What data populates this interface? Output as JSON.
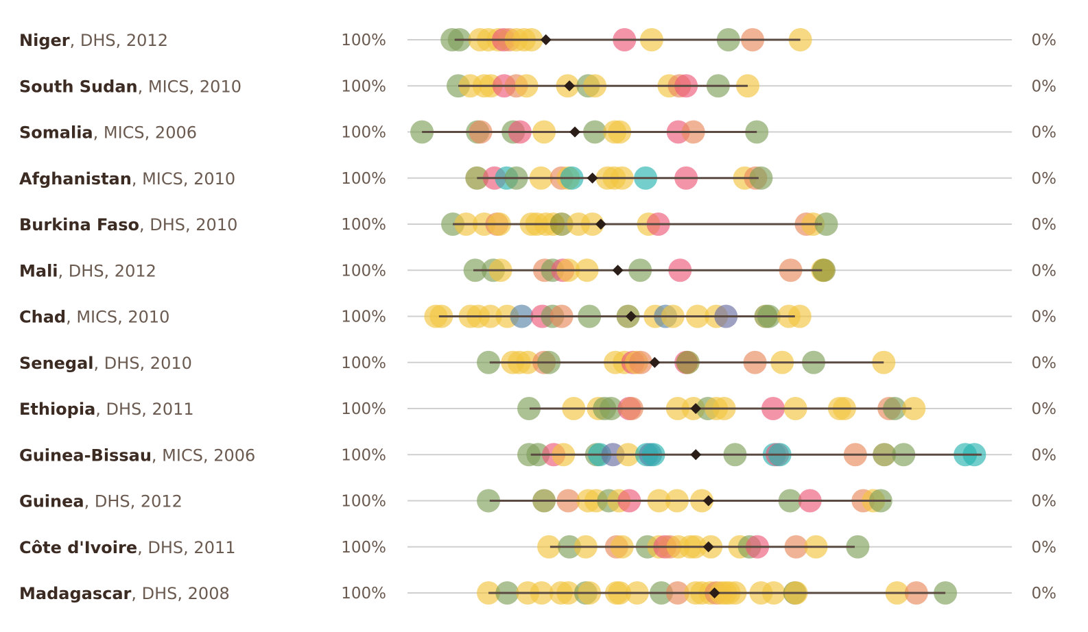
{
  "chart_data": {
    "type": "scatter",
    "xlim": [
      0,
      100
    ],
    "x_axis_direction": "descending",
    "left_label": "100%",
    "right_label": "0%",
    "colors": {
      "green": "#7f9f5b",
      "yellow": "#f2c440",
      "orange": "#e98a5c",
      "pink": "#ec5a7a",
      "teal": "#2ab3b0",
      "blue": "#5b86a8",
      "purple": "#6c6fa3",
      "olive": "#8a8f2c",
      "range": "#5a4a42",
      "median": "#2b1d17"
    },
    "rows": [
      {
        "country": "Niger",
        "meta": ", DHS, 2012",
        "median": 77.1,
        "range": [
          92.2,
          35.0
        ],
        "points": [
          {
            "x": 92.6,
            "c": "green"
          },
          {
            "x": 91.4,
            "c": "green"
          },
          {
            "x": 88.0,
            "c": "yellow"
          },
          {
            "x": 86.6,
            "c": "yellow"
          },
          {
            "x": 85.0,
            "c": "yellow"
          },
          {
            "x": 84.1,
            "c": "pink"
          },
          {
            "x": 83.2,
            "c": "orange"
          },
          {
            "x": 82.0,
            "c": "yellow"
          },
          {
            "x": 80.7,
            "c": "yellow"
          },
          {
            "x": 79.5,
            "c": "yellow"
          },
          {
            "x": 64.1,
            "c": "pink"
          },
          {
            "x": 59.6,
            "c": "yellow"
          },
          {
            "x": 46.9,
            "c": "green"
          },
          {
            "x": 42.9,
            "c": "orange"
          },
          {
            "x": 35.0,
            "c": "yellow"
          }
        ]
      },
      {
        "country": "South Sudan",
        "meta": ", MICS, 2010",
        "median": 73.2,
        "range": [
          91.6,
          43.7
        ],
        "points": [
          {
            "x": 91.6,
            "c": "green"
          },
          {
            "x": 89.6,
            "c": "yellow"
          },
          {
            "x": 87.3,
            "c": "yellow"
          },
          {
            "x": 86.2,
            "c": "yellow"
          },
          {
            "x": 84.0,
            "c": "pink"
          },
          {
            "x": 82.0,
            "c": "orange"
          },
          {
            "x": 80.3,
            "c": "yellow"
          },
          {
            "x": 73.5,
            "c": "yellow"
          },
          {
            "x": 70.1,
            "c": "green"
          },
          {
            "x": 69.0,
            "c": "yellow"
          },
          {
            "x": 56.7,
            "c": "yellow"
          },
          {
            "x": 55.0,
            "c": "orange"
          },
          {
            "x": 53.9,
            "c": "pink"
          },
          {
            "x": 48.6,
            "c": "green"
          },
          {
            "x": 43.7,
            "c": "yellow"
          }
        ]
      },
      {
        "country": "Somalia",
        "meta": ", MICS, 2006",
        "median": 72.3,
        "range": [
          97.6,
          42.2
        ],
        "points": [
          {
            "x": 97.6,
            "c": "green"
          },
          {
            "x": 88.4,
            "c": "green"
          },
          {
            "x": 87.9,
            "c": "orange"
          },
          {
            "x": 82.5,
            "c": "green"
          },
          {
            "x": 81.4,
            "c": "pink"
          },
          {
            "x": 77.4,
            "c": "yellow"
          },
          {
            "x": 69.0,
            "c": "green"
          },
          {
            "x": 65.7,
            "c": "yellow"
          },
          {
            "x": 64.9,
            "c": "yellow"
          },
          {
            "x": 55.2,
            "c": "pink"
          },
          {
            "x": 52.7,
            "c": "orange"
          },
          {
            "x": 42.2,
            "c": "green"
          }
        ]
      },
      {
        "country": "Afghanistan",
        "meta": ", MICS, 2010",
        "median": 69.4,
        "range": [
          88.5,
          41.9
        ],
        "points": [
          {
            "x": 88.5,
            "c": "olive"
          },
          {
            "x": 85.6,
            "c": "pink"
          },
          {
            "x": 83.6,
            "c": "teal"
          },
          {
            "x": 82.0,
            "c": "green"
          },
          {
            "x": 77.9,
            "c": "yellow"
          },
          {
            "x": 74.5,
            "c": "orange"
          },
          {
            "x": 73.4,
            "c": "yellow"
          },
          {
            "x": 72.8,
            "c": "teal"
          },
          {
            "x": 66.9,
            "c": "yellow"
          },
          {
            "x": 65.8,
            "c": "yellow"
          },
          {
            "x": 64.5,
            "c": "yellow"
          },
          {
            "x": 60.6,
            "c": "teal"
          },
          {
            "x": 53.9,
            "c": "pink"
          },
          {
            "x": 44.2,
            "c": "yellow"
          },
          {
            "x": 42.4,
            "c": "orange"
          },
          {
            "x": 41.5,
            "c": "green"
          }
        ]
      },
      {
        "country": "Burkina Faso",
        "meta": ", DHS, 2010",
        "median": 68.0,
        "range": [
          92.5,
          31.4
        ],
        "points": [
          {
            "x": 92.5,
            "c": "green"
          },
          {
            "x": 90.3,
            "c": "yellow"
          },
          {
            "x": 87.3,
            "c": "yellow"
          },
          {
            "x": 85.2,
            "c": "orange"
          },
          {
            "x": 84.8,
            "c": "yellow"
          },
          {
            "x": 79.5,
            "c": "yellow"
          },
          {
            "x": 78.6,
            "c": "yellow"
          },
          {
            "x": 77.1,
            "c": "yellow"
          },
          {
            "x": 75.9,
            "c": "yellow"
          },
          {
            "x": 74.5,
            "c": "olive"
          },
          {
            "x": 71.7,
            "c": "yellow"
          },
          {
            "x": 69.4,
            "c": "yellow"
          },
          {
            "x": 60.1,
            "c": "yellow"
          },
          {
            "x": 58.5,
            "c": "pink"
          },
          {
            "x": 34.0,
            "c": "orange"
          },
          {
            "x": 32.9,
            "c": "yellow"
          },
          {
            "x": 30.7,
            "c": "green"
          }
        ]
      },
      {
        "country": "Mali",
        "meta": ", DHS, 2012",
        "median": 65.2,
        "range": [
          89.1,
          31.4
        ],
        "points": [
          {
            "x": 88.8,
            "c": "green"
          },
          {
            "x": 85.8,
            "c": "green"
          },
          {
            "x": 84.6,
            "c": "yellow"
          },
          {
            "x": 77.3,
            "c": "orange"
          },
          {
            "x": 76.0,
            "c": "green"
          },
          {
            "x": 74.3,
            "c": "pink"
          },
          {
            "x": 73.4,
            "c": "yellow"
          },
          {
            "x": 70.3,
            "c": "yellow"
          },
          {
            "x": 61.5,
            "c": "green"
          },
          {
            "x": 54.9,
            "c": "pink"
          },
          {
            "x": 36.6,
            "c": "orange"
          },
          {
            "x": 31.3,
            "c": "yellow"
          },
          {
            "x": 31.1,
            "c": "olive"
          }
        ]
      },
      {
        "country": "Chad",
        "meta": ", MICS, 2010",
        "median": 63.0,
        "range": [
          94.8,
          35.9
        ],
        "points": [
          {
            "x": 95.3,
            "c": "yellow"
          },
          {
            "x": 94.4,
            "c": "yellow"
          },
          {
            "x": 89.6,
            "c": "yellow"
          },
          {
            "x": 88.3,
            "c": "yellow"
          },
          {
            "x": 86.3,
            "c": "yellow"
          },
          {
            "x": 83.5,
            "c": "yellow"
          },
          {
            "x": 81.1,
            "c": "blue"
          },
          {
            "x": 77.7,
            "c": "pink"
          },
          {
            "x": 76.0,
            "c": "green"
          },
          {
            "x": 74.5,
            "c": "orange"
          },
          {
            "x": 69.9,
            "c": "green"
          },
          {
            "x": 63.5,
            "c": "olive"
          },
          {
            "x": 59.0,
            "c": "yellow"
          },
          {
            "x": 57.3,
            "c": "blue"
          },
          {
            "x": 56.1,
            "c": "yellow"
          },
          {
            "x": 52.0,
            "c": "yellow"
          },
          {
            "x": 48.9,
            "c": "yellow"
          },
          {
            "x": 47.3,
            "c": "purple"
          },
          {
            "x": 40.7,
            "c": "olive"
          },
          {
            "x": 40.2,
            "c": "green"
          },
          {
            "x": 36.9,
            "c": "yellow"
          },
          {
            "x": 35.1,
            "c": "yellow"
          }
        ]
      },
      {
        "country": "Senegal",
        "meta": ", DHS, 2010",
        "median": 59.1,
        "range": [
          86.4,
          21.2
        ],
        "points": [
          {
            "x": 86.6,
            "c": "green"
          },
          {
            "x": 82.6,
            "c": "yellow"
          },
          {
            "x": 81.5,
            "c": "yellow"
          },
          {
            "x": 80.1,
            "c": "yellow"
          },
          {
            "x": 77.4,
            "c": "orange"
          },
          {
            "x": 76.6,
            "c": "green"
          },
          {
            "x": 65.6,
            "c": "yellow"
          },
          {
            "x": 64.1,
            "c": "yellow"
          },
          {
            "x": 62.7,
            "c": "pink"
          },
          {
            "x": 62.1,
            "c": "yellow"
          },
          {
            "x": 61.4,
            "c": "orange"
          },
          {
            "x": 53.9,
            "c": "pink"
          },
          {
            "x": 53.6,
            "c": "olive"
          },
          {
            "x": 42.5,
            "c": "orange"
          },
          {
            "x": 38.0,
            "c": "yellow"
          },
          {
            "x": 32.8,
            "c": "green"
          },
          {
            "x": 21.2,
            "c": "yellow"
          }
        ]
      },
      {
        "country": "Ethiopia",
        "meta": ", DHS, 2011",
        "median": 52.3,
        "range": [
          79.8,
          16.6
        ],
        "points": [
          {
            "x": 79.9,
            "c": "green"
          },
          {
            "x": 72.5,
            "c": "yellow"
          },
          {
            "x": 68.4,
            "c": "yellow"
          },
          {
            "x": 67.4,
            "c": "green"
          },
          {
            "x": 66.3,
            "c": "green"
          },
          {
            "x": 63.3,
            "c": "pink"
          },
          {
            "x": 62.9,
            "c": "orange"
          },
          {
            "x": 55.3,
            "c": "yellow"
          },
          {
            "x": 52.7,
            "c": "yellow"
          },
          {
            "x": 50.3,
            "c": "green"
          },
          {
            "x": 48.9,
            "c": "yellow"
          },
          {
            "x": 47.6,
            "c": "yellow"
          },
          {
            "x": 39.5,
            "c": "pink"
          },
          {
            "x": 35.8,
            "c": "yellow"
          },
          {
            "x": 28.5,
            "c": "yellow"
          },
          {
            "x": 27.7,
            "c": "yellow"
          },
          {
            "x": 20.3,
            "c": "orange"
          },
          {
            "x": 19.4,
            "c": "green"
          },
          {
            "x": 16.2,
            "c": "yellow"
          }
        ]
      },
      {
        "country": "Guinea-Bissau",
        "meta": ", MICS, 2006",
        "median": 52.3,
        "range": [
          79.6,
          5.0
        ],
        "points": [
          {
            "x": 79.9,
            "c": "green"
          },
          {
            "x": 78.4,
            "c": "green"
          },
          {
            "x": 75.8,
            "c": "pink"
          },
          {
            "x": 74.2,
            "c": "yellow"
          },
          {
            "x": 68.7,
            "c": "green"
          },
          {
            "x": 68.2,
            "c": "teal"
          },
          {
            "x": 66.0,
            "c": "purple"
          },
          {
            "x": 63.5,
            "c": "yellow"
          },
          {
            "x": 60.4,
            "c": "teal"
          },
          {
            "x": 59.8,
            "c": "blue"
          },
          {
            "x": 59.3,
            "c": "teal"
          },
          {
            "x": 45.8,
            "c": "green"
          },
          {
            "x": 39.3,
            "c": "teal"
          },
          {
            "x": 38.8,
            "c": "pink"
          },
          {
            "x": 38.4,
            "c": "teal"
          },
          {
            "x": 25.9,
            "c": "orange"
          },
          {
            "x": 21.1,
            "c": "olive"
          },
          {
            "x": 17.9,
            "c": "green"
          },
          {
            "x": 7.7,
            "c": "teal"
          },
          {
            "x": 6.2,
            "c": "teal"
          }
        ]
      },
      {
        "country": "Guinea",
        "meta": ", DHS, 2012",
        "median": 50.2,
        "range": [
          86.4,
          20.0
        ],
        "points": [
          {
            "x": 86.6,
            "c": "green"
          },
          {
            "x": 77.4,
            "c": "olive"
          },
          {
            "x": 73.4,
            "c": "orange"
          },
          {
            "x": 70.1,
            "c": "yellow"
          },
          {
            "x": 68.8,
            "c": "yellow"
          },
          {
            "x": 66.7,
            "c": "green"
          },
          {
            "x": 65.0,
            "c": "yellow"
          },
          {
            "x": 63.3,
            "c": "pink"
          },
          {
            "x": 58.4,
            "c": "yellow"
          },
          {
            "x": 55.4,
            "c": "yellow"
          },
          {
            "x": 51.3,
            "c": "yellow"
          },
          {
            "x": 36.7,
            "c": "green"
          },
          {
            "x": 33.4,
            "c": "pink"
          },
          {
            "x": 24.6,
            "c": "orange"
          },
          {
            "x": 22.9,
            "c": "yellow"
          },
          {
            "x": 21.7,
            "c": "green"
          }
        ]
      },
      {
        "country": "Côte d'Ivoire",
        "meta": ", DHS, 2011",
        "median": 50.2,
        "range": [
          76.4,
          26.0
        ],
        "points": [
          {
            "x": 76.6,
            "c": "yellow"
          },
          {
            "x": 73.2,
            "c": "green"
          },
          {
            "x": 70.5,
            "c": "yellow"
          },
          {
            "x": 65.4,
            "c": "orange"
          },
          {
            "x": 64.5,
            "c": "yellow"
          },
          {
            "x": 60.3,
            "c": "green"
          },
          {
            "x": 58.4,
            "c": "yellow"
          },
          {
            "x": 57.4,
            "c": "pink"
          },
          {
            "x": 56.6,
            "c": "orange"
          },
          {
            "x": 55.2,
            "c": "yellow"
          },
          {
            "x": 53.2,
            "c": "yellow"
          },
          {
            "x": 52.4,
            "c": "yellow"
          },
          {
            "x": 49.8,
            "c": "yellow"
          },
          {
            "x": 45.0,
            "c": "yellow"
          },
          {
            "x": 43.4,
            "c": "green"
          },
          {
            "x": 42.1,
            "c": "pink"
          },
          {
            "x": 35.7,
            "c": "orange"
          },
          {
            "x": 32.4,
            "c": "yellow"
          },
          {
            "x": 25.5,
            "c": "green"
          }
        ]
      },
      {
        "country": "Madagascar",
        "meta": ", DHS, 2008",
        "median": 49.2,
        "range": [
          86.6,
          11.0
        ],
        "points": [
          {
            "x": 86.6,
            "c": "yellow"
          },
          {
            "x": 83.5,
            "c": "green"
          },
          {
            "x": 80.1,
            "c": "yellow"
          },
          {
            "x": 77.8,
            "c": "yellow"
          },
          {
            "x": 74.6,
            "c": "yellow"
          },
          {
            "x": 73.4,
            "c": "yellow"
          },
          {
            "x": 70.5,
            "c": "green"
          },
          {
            "x": 69.9,
            "c": "yellow"
          },
          {
            "x": 65.4,
            "c": "yellow"
          },
          {
            "x": 64.9,
            "c": "yellow"
          },
          {
            "x": 62.0,
            "c": "yellow"
          },
          {
            "x": 58.0,
            "c": "green"
          },
          {
            "x": 55.3,
            "c": "orange"
          },
          {
            "x": 52.3,
            "c": "yellow"
          },
          {
            "x": 51.3,
            "c": "yellow"
          },
          {
            "x": 49.9,
            "c": "yellow"
          },
          {
            "x": 48.9,
            "c": "orange"
          },
          {
            "x": 48.1,
            "c": "yellow"
          },
          {
            "x": 47.4,
            "c": "yellow"
          },
          {
            "x": 46.8,
            "c": "yellow"
          },
          {
            "x": 45.8,
            "c": "yellow"
          },
          {
            "x": 41.5,
            "c": "yellow"
          },
          {
            "x": 39.4,
            "c": "yellow"
          },
          {
            "x": 35.9,
            "c": "olive"
          },
          {
            "x": 35.7,
            "c": "yellow"
          },
          {
            "x": 19.0,
            "c": "yellow"
          },
          {
            "x": 15.8,
            "c": "orange"
          },
          {
            "x": 11.0,
            "c": "green"
          }
        ]
      }
    ]
  }
}
